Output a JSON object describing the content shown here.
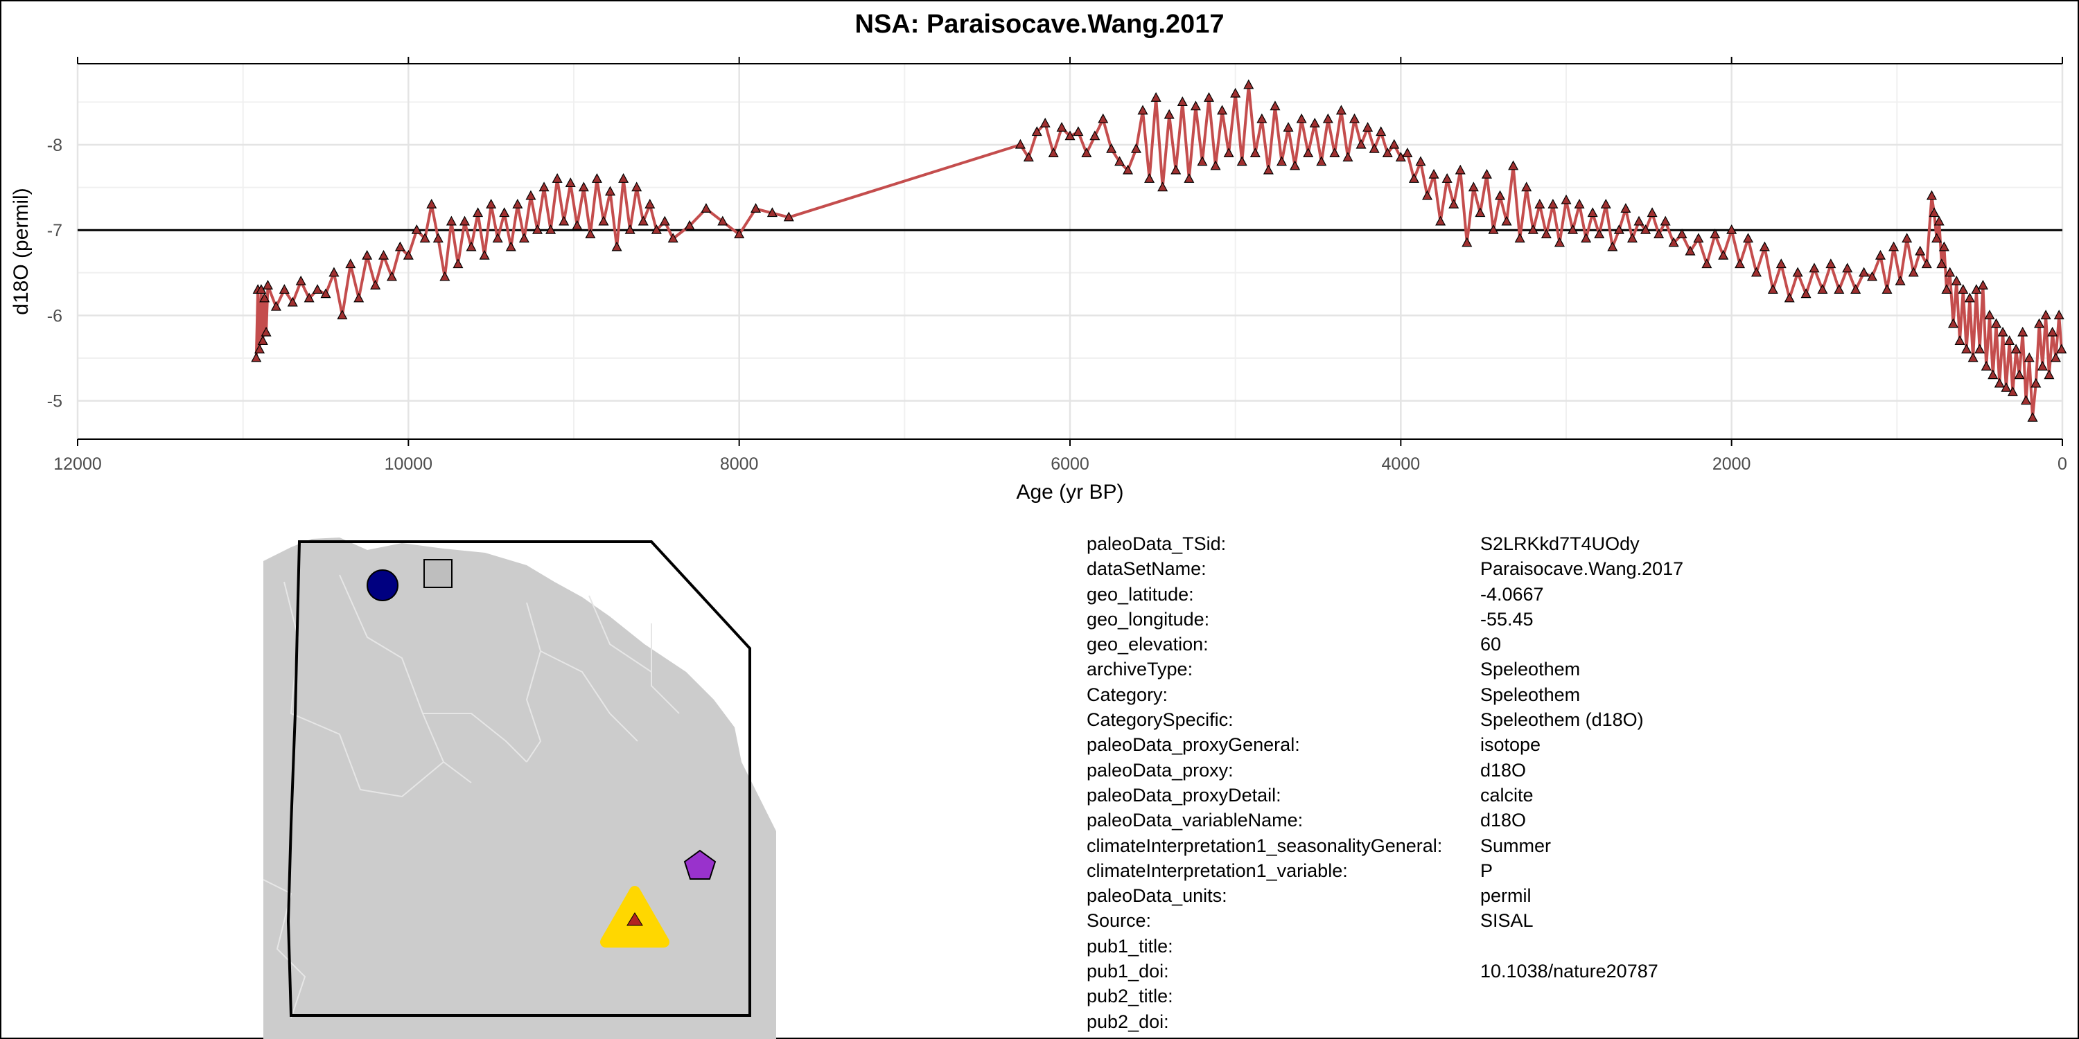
{
  "title": "NSA: Paraisocave.Wang.2017",
  "chart_data": {
    "type": "line",
    "title": "NSA: Paraisocave.Wang.2017",
    "xlabel": "Age (yr BP)",
    "ylabel": "d18O (permil)",
    "x_reversed": true,
    "y_reversed": true,
    "xlim": [
      12000,
      0
    ],
    "ylim": [
      -4.55,
      -8.95
    ],
    "x_ticks": [
      12000,
      10000,
      8000,
      6000,
      4000,
      2000,
      0
    ],
    "y_ticks": [
      -5,
      -6,
      -7,
      -8
    ],
    "reference_line_y": -7,
    "marker": "triangle",
    "grid": true,
    "series": [
      {
        "color": "#c44d4d",
        "marker_fill": "#a03030",
        "points": [
          [
            10920,
            -5.5
          ],
          [
            10910,
            -6.3
          ],
          [
            10900,
            -5.6
          ],
          [
            10890,
            -6.3
          ],
          [
            10880,
            -5.7
          ],
          [
            10870,
            -6.2
          ],
          [
            10860,
            -5.8
          ],
          [
            10850,
            -6.35
          ],
          [
            10800,
            -6.1
          ],
          [
            10750,
            -6.3
          ],
          [
            10700,
            -6.15
          ],
          [
            10650,
            -6.4
          ],
          [
            10600,
            -6.2
          ],
          [
            10550,
            -6.3
          ],
          [
            10500,
            -6.25
          ],
          [
            10450,
            -6.5
          ],
          [
            10400,
            -6.0
          ],
          [
            10350,
            -6.6
          ],
          [
            10300,
            -6.2
          ],
          [
            10250,
            -6.7
          ],
          [
            10200,
            -6.35
          ],
          [
            10150,
            -6.7
          ],
          [
            10100,
            -6.45
          ],
          [
            10050,
            -6.8
          ],
          [
            10000,
            -6.7
          ],
          [
            9950,
            -7.0
          ],
          [
            9900,
            -6.9
          ],
          [
            9860,
            -7.3
          ],
          [
            9820,
            -6.9
          ],
          [
            9780,
            -6.45
          ],
          [
            9740,
            -7.1
          ],
          [
            9700,
            -6.6
          ],
          [
            9660,
            -7.1
          ],
          [
            9620,
            -6.8
          ],
          [
            9580,
            -7.2
          ],
          [
            9540,
            -6.7
          ],
          [
            9500,
            -7.3
          ],
          [
            9460,
            -6.9
          ],
          [
            9420,
            -7.2
          ],
          [
            9380,
            -6.8
          ],
          [
            9340,
            -7.3
          ],
          [
            9300,
            -6.9
          ],
          [
            9260,
            -7.4
          ],
          [
            9220,
            -7.0
          ],
          [
            9180,
            -7.5
          ],
          [
            9140,
            -7.0
          ],
          [
            9100,
            -7.6
          ],
          [
            9060,
            -7.1
          ],
          [
            9020,
            -7.55
          ],
          [
            8980,
            -7.05
          ],
          [
            8940,
            -7.5
          ],
          [
            8900,
            -6.95
          ],
          [
            8860,
            -7.6
          ],
          [
            8820,
            -7.1
          ],
          [
            8780,
            -7.45
          ],
          [
            8740,
            -6.8
          ],
          [
            8700,
            -7.6
          ],
          [
            8660,
            -7.0
          ],
          [
            8620,
            -7.5
          ],
          [
            8580,
            -7.1
          ],
          [
            8540,
            -7.3
          ],
          [
            8500,
            -7.0
          ],
          [
            8450,
            -7.1
          ],
          [
            8400,
            -6.9
          ],
          [
            8300,
            -7.05
          ],
          [
            8200,
            -7.25
          ],
          [
            8100,
            -7.1
          ],
          [
            8000,
            -6.95
          ],
          [
            7900,
            -7.25
          ],
          [
            7800,
            -7.2
          ],
          [
            7700,
            -7.15
          ],
          [
            6300,
            -8.0
          ],
          [
            6250,
            -7.85
          ],
          [
            6200,
            -8.15
          ],
          [
            6150,
            -8.25
          ],
          [
            6100,
            -7.9
          ],
          [
            6050,
            -8.2
          ],
          [
            6000,
            -8.1
          ],
          [
            5950,
            -8.15
          ],
          [
            5900,
            -7.9
          ],
          [
            5850,
            -8.1
          ],
          [
            5800,
            -8.3
          ],
          [
            5750,
            -7.95
          ],
          [
            5700,
            -7.8
          ],
          [
            5650,
            -7.7
          ],
          [
            5600,
            -7.95
          ],
          [
            5560,
            -8.4
          ],
          [
            5520,
            -7.6
          ],
          [
            5480,
            -8.55
          ],
          [
            5440,
            -7.5
          ],
          [
            5400,
            -8.35
          ],
          [
            5360,
            -7.7
          ],
          [
            5320,
            -8.5
          ],
          [
            5280,
            -7.6
          ],
          [
            5240,
            -8.45
          ],
          [
            5200,
            -7.8
          ],
          [
            5160,
            -8.55
          ],
          [
            5120,
            -7.75
          ],
          [
            5080,
            -8.4
          ],
          [
            5040,
            -7.9
          ],
          [
            5000,
            -8.6
          ],
          [
            4960,
            -7.8
          ],
          [
            4920,
            -8.7
          ],
          [
            4880,
            -7.9
          ],
          [
            4840,
            -8.3
          ],
          [
            4800,
            -7.7
          ],
          [
            4760,
            -8.45
          ],
          [
            4720,
            -7.8
          ],
          [
            4680,
            -8.2
          ],
          [
            4640,
            -7.75
          ],
          [
            4600,
            -8.3
          ],
          [
            4560,
            -7.9
          ],
          [
            4520,
            -8.25
          ],
          [
            4480,
            -7.8
          ],
          [
            4440,
            -8.3
          ],
          [
            4400,
            -7.9
          ],
          [
            4360,
            -8.4
          ],
          [
            4320,
            -7.85
          ],
          [
            4280,
            -8.3
          ],
          [
            4240,
            -8.0
          ],
          [
            4200,
            -8.2
          ],
          [
            4160,
            -7.95
          ],
          [
            4120,
            -8.15
          ],
          [
            4080,
            -7.9
          ],
          [
            4040,
            -8.0
          ],
          [
            4000,
            -7.85
          ],
          [
            3960,
            -7.9
          ],
          [
            3920,
            -7.6
          ],
          [
            3880,
            -7.8
          ],
          [
            3840,
            -7.4
          ],
          [
            3800,
            -7.65
          ],
          [
            3760,
            -7.1
          ],
          [
            3720,
            -7.6
          ],
          [
            3680,
            -7.3
          ],
          [
            3640,
            -7.7
          ],
          [
            3600,
            -6.85
          ],
          [
            3560,
            -7.5
          ],
          [
            3520,
            -7.2
          ],
          [
            3480,
            -7.65
          ],
          [
            3440,
            -7.0
          ],
          [
            3400,
            -7.4
          ],
          [
            3360,
            -7.1
          ],
          [
            3320,
            -7.75
          ],
          [
            3280,
            -6.9
          ],
          [
            3240,
            -7.5
          ],
          [
            3200,
            -7.0
          ],
          [
            3160,
            -7.3
          ],
          [
            3120,
            -6.95
          ],
          [
            3080,
            -7.3
          ],
          [
            3040,
            -6.85
          ],
          [
            3000,
            -7.35
          ],
          [
            2960,
            -7.0
          ],
          [
            2920,
            -7.3
          ],
          [
            2880,
            -6.9
          ],
          [
            2840,
            -7.2
          ],
          [
            2800,
            -6.95
          ],
          [
            2760,
            -7.3
          ],
          [
            2720,
            -6.8
          ],
          [
            2680,
            -7.0
          ],
          [
            2640,
            -7.25
          ],
          [
            2600,
            -6.9
          ],
          [
            2560,
            -7.1
          ],
          [
            2520,
            -7.0
          ],
          [
            2480,
            -7.2
          ],
          [
            2440,
            -6.95
          ],
          [
            2400,
            -7.1
          ],
          [
            2350,
            -6.85
          ],
          [
            2300,
            -6.95
          ],
          [
            2250,
            -6.75
          ],
          [
            2200,
            -6.9
          ],
          [
            2150,
            -6.6
          ],
          [
            2100,
            -6.95
          ],
          [
            2050,
            -6.7
          ],
          [
            2000,
            -7.0
          ],
          [
            1950,
            -6.6
          ],
          [
            1900,
            -6.9
          ],
          [
            1850,
            -6.5
          ],
          [
            1800,
            -6.8
          ],
          [
            1750,
            -6.3
          ],
          [
            1700,
            -6.6
          ],
          [
            1650,
            -6.2
          ],
          [
            1600,
            -6.5
          ],
          [
            1550,
            -6.25
          ],
          [
            1500,
            -6.55
          ],
          [
            1450,
            -6.3
          ],
          [
            1400,
            -6.6
          ],
          [
            1350,
            -6.3
          ],
          [
            1300,
            -6.55
          ],
          [
            1250,
            -6.3
          ],
          [
            1200,
            -6.5
          ],
          [
            1150,
            -6.45
          ],
          [
            1100,
            -6.7
          ],
          [
            1060,
            -6.3
          ],
          [
            1020,
            -6.8
          ],
          [
            980,
            -6.4
          ],
          [
            940,
            -6.9
          ],
          [
            900,
            -6.5
          ],
          [
            860,
            -6.75
          ],
          [
            820,
            -6.6
          ],
          [
            790,
            -7.4
          ],
          [
            775,
            -7.2
          ],
          [
            760,
            -6.9
          ],
          [
            745,
            -7.1
          ],
          [
            730,
            -6.6
          ],
          [
            715,
            -6.8
          ],
          [
            700,
            -6.3
          ],
          [
            680,
            -6.5
          ],
          [
            660,
            -5.9
          ],
          [
            640,
            -6.4
          ],
          [
            620,
            -5.7
          ],
          [
            600,
            -6.3
          ],
          [
            580,
            -5.6
          ],
          [
            560,
            -6.2
          ],
          [
            540,
            -5.5
          ],
          [
            520,
            -6.3
          ],
          [
            500,
            -5.6
          ],
          [
            480,
            -6.35
          ],
          [
            460,
            -5.4
          ],
          [
            440,
            -6.0
          ],
          [
            420,
            -5.3
          ],
          [
            400,
            -5.9
          ],
          [
            380,
            -5.2
          ],
          [
            360,
            -5.8
          ],
          [
            340,
            -5.15
          ],
          [
            320,
            -5.7
          ],
          [
            300,
            -5.1
          ],
          [
            280,
            -5.6
          ],
          [
            260,
            -5.3
          ],
          [
            240,
            -5.8
          ],
          [
            220,
            -5.0
          ],
          [
            200,
            -5.5
          ],
          [
            180,
            -4.8
          ],
          [
            160,
            -5.2
          ],
          [
            140,
            -5.9
          ],
          [
            120,
            -5.4
          ],
          [
            100,
            -6.0
          ],
          [
            80,
            -5.3
          ],
          [
            60,
            -5.8
          ],
          [
            40,
            -5.5
          ],
          [
            20,
            -6.0
          ],
          [
            5,
            -5.6
          ]
        ]
      }
    ]
  },
  "map": {
    "land_color": "#cccccc",
    "markers": [
      {
        "shape": "circle",
        "color": "#000080"
      },
      {
        "shape": "square",
        "color": "#bebebe"
      },
      {
        "shape": "pentagon",
        "color": "#9932cc"
      },
      {
        "shape": "triangle",
        "color": "#ffd700",
        "inner_color": "#b22222"
      }
    ]
  },
  "metadata": [
    {
      "key": "paleoData_TSid:",
      "value": "S2LRKkd7T4UOdy"
    },
    {
      "key": "dataSetName:",
      "value": "Paraisocave.Wang.2017"
    },
    {
      "key": "geo_latitude:",
      "value": "-4.0667"
    },
    {
      "key": "geo_longitude:",
      "value": "-55.45"
    },
    {
      "key": "geo_elevation:",
      "value": "60"
    },
    {
      "key": "archiveType:",
      "value": "Speleothem"
    },
    {
      "key": "Category:",
      "value": "Speleothem"
    },
    {
      "key": "CategorySpecific:",
      "value": "Speleothem (d18O)"
    },
    {
      "key": "paleoData_proxyGeneral:",
      "value": "isotope"
    },
    {
      "key": "paleoData_proxy:",
      "value": "d18O"
    },
    {
      "key": "paleoData_proxyDetail:",
      "value": "calcite"
    },
    {
      "key": "paleoData_variableName:",
      "value": "d18O"
    },
    {
      "key": "climateInterpretation1_seasonalityGeneral:",
      "value": "Summer"
    },
    {
      "key": "climateInterpretation1_variable:",
      "value": "P"
    },
    {
      "key": "paleoData_units:",
      "value": "permil"
    },
    {
      "key": "Source:",
      "value": "SISAL"
    },
    {
      "key": "pub1_title:",
      "value": ""
    },
    {
      "key": "pub1_doi:",
      "value": "10.1038/nature20787"
    },
    {
      "key": "pub2_title:",
      "value": ""
    },
    {
      "key": "pub2_doi:",
      "value": ""
    }
  ]
}
